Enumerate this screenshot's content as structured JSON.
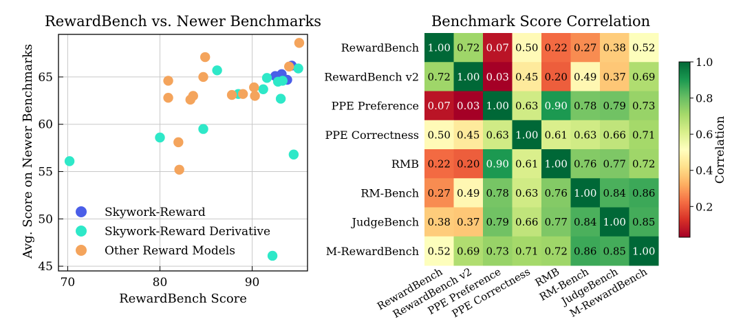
{
  "chart_data": [
    {
      "type": "scatter",
      "title": "RewardBench vs. Newer Benchmarks",
      "xlabel": "RewardBench Score",
      "ylabel": "Avg. Score on Newer Benchmarks",
      "xlim": [
        69,
        96
      ],
      "ylim": [
        44.5,
        69.5
      ],
      "xticks": [
        70,
        80,
        90
      ],
      "yticks": [
        45,
        50,
        55,
        60,
        65
      ],
      "grid": true,
      "legend_position": "bottom-left",
      "series": [
        {
          "name": "Skywork-Reward",
          "color": "#4a5ee8",
          "points": [
            [
              92.5,
              65.1
            ],
            [
              93.2,
              65.3
            ],
            [
              93.8,
              64.7
            ],
            [
              94.3,
              66.2
            ]
          ]
        },
        {
          "name": "Skywork-Reward Derivative",
          "color": "#2ee8c8",
          "points": [
            [
              70.2,
              56.1
            ],
            [
              80.0,
              58.6
            ],
            [
              84.7,
              59.5
            ],
            [
              86.2,
              65.7
            ],
            [
              88.5,
              63.2
            ],
            [
              91.2,
              63.7
            ],
            [
              91.6,
              64.9
            ],
            [
              92.8,
              64.5
            ],
            [
              93.1,
              62.7
            ],
            [
              93.3,
              64.6
            ],
            [
              94.5,
              56.8
            ],
            [
              95.0,
              65.9
            ],
            [
              92.2,
              46.1
            ]
          ]
        },
        {
          "name": "Other Reward Models",
          "color": "#f4a45c",
          "points": [
            [
              80.9,
              64.6
            ],
            [
              80.9,
              62.8
            ],
            [
              82.0,
              58.1
            ],
            [
              82.1,
              55.2
            ],
            [
              83.3,
              62.6
            ],
            [
              83.6,
              63.0
            ],
            [
              84.7,
              65.0
            ],
            [
              84.9,
              67.1
            ],
            [
              87.8,
              63.1
            ],
            [
              89.0,
              63.2
            ],
            [
              90.2,
              63.9
            ],
            [
              90.3,
              63.0
            ],
            [
              94.0,
              66.1
            ],
            [
              95.1,
              68.6
            ]
          ]
        }
      ]
    },
    {
      "type": "heatmap",
      "title": "Benchmark Score Correlation",
      "rows": [
        "RewardBench",
        "RewardBench v2",
        "PPE Preference",
        "PPE Correctness",
        "RMB",
        "RM-Bench",
        "JudgeBench",
        "M-RewardBench"
      ],
      "columns": [
        "RewardBench",
        "RewardBench v2",
        "PPE Preference",
        "PPE Correctness",
        "RMB",
        "RM-Bench",
        "JudgeBench",
        "M-RewardBench"
      ],
      "values": [
        [
          1.0,
          0.72,
          0.07,
          0.5,
          0.22,
          0.27,
          0.38,
          0.52
        ],
        [
          0.72,
          1.0,
          0.03,
          0.45,
          0.2,
          0.49,
          0.37,
          0.69
        ],
        [
          0.07,
          0.03,
          1.0,
          0.63,
          0.9,
          0.78,
          0.79,
          0.73
        ],
        [
          0.5,
          0.45,
          0.63,
          1.0,
          0.61,
          0.63,
          0.66,
          0.71
        ],
        [
          0.22,
          0.2,
          0.9,
          0.61,
          1.0,
          0.76,
          0.77,
          0.72
        ],
        [
          0.27,
          0.49,
          0.78,
          0.63,
          0.76,
          1.0,
          0.84,
          0.86
        ],
        [
          0.38,
          0.37,
          0.79,
          0.66,
          0.77,
          0.84,
          1.0,
          0.85
        ],
        [
          0.52,
          0.69,
          0.73,
          0.71,
          0.72,
          0.86,
          0.85,
          1.0
        ]
      ],
      "colorbar": {
        "label": "Correlation",
        "range": [
          0.03,
          1.0
        ],
        "ticks": [
          0.2,
          0.4,
          0.6,
          0.8,
          1.0
        ],
        "tick_labels": [
          "0.2",
          "0.4",
          "0.6",
          "0.8",
          "1.0"
        ],
        "colormap": "RdYlGn"
      }
    }
  ]
}
